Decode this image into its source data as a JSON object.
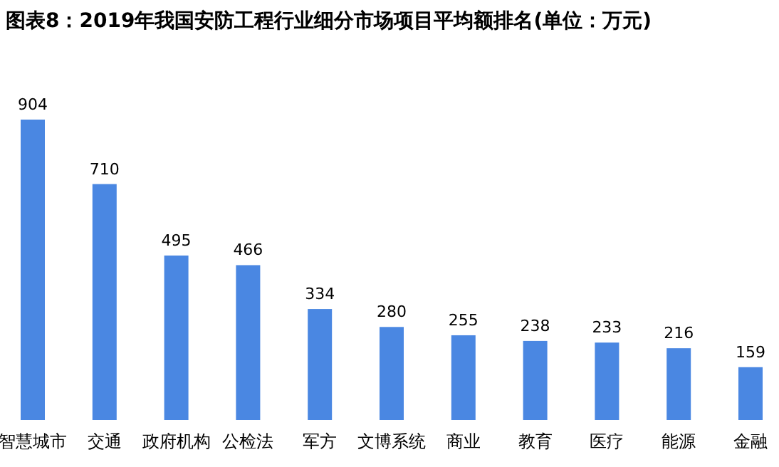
{
  "chart_data": {
    "type": "bar",
    "title": "图表8：2019年我国安防工程行业细分市场项目平均额排名(单位：万元)",
    "categories": [
      "智慧城市",
      "交通",
      "政府机构",
      "公检法",
      "军方",
      "文博系统",
      "商业",
      "教育",
      "医疗",
      "能源",
      "金融"
    ],
    "values": [
      904,
      710,
      495,
      466,
      334,
      280,
      255,
      238,
      233,
      216,
      159
    ],
    "color": "#4a87e2",
    "data_labels": true
  }
}
